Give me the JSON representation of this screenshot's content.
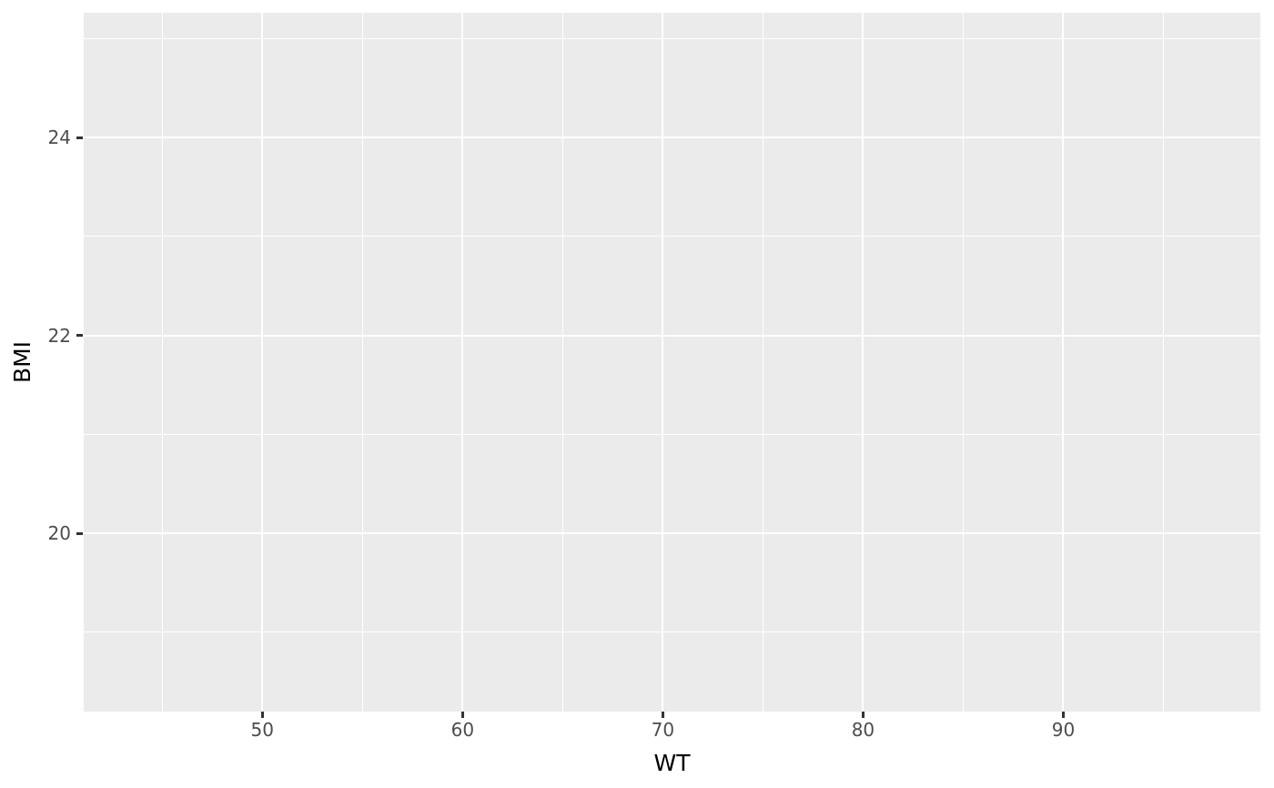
{
  "chart_data": {
    "type": "scatter",
    "title": "",
    "xlabel": "WT",
    "ylabel": "BMI",
    "x_major_ticks": [
      50,
      60,
      70,
      80,
      90
    ],
    "x_tick_labels": [
      "50",
      "60",
      "70",
      "80",
      "90"
    ],
    "x_minor_ticks": [
      45,
      55,
      65,
      75,
      85,
      95
    ],
    "y_major_ticks": [
      20,
      22,
      24
    ],
    "y_tick_labels": [
      "20",
      "22",
      "24"
    ],
    "y_minor_ticks": [
      19,
      21,
      23,
      25
    ],
    "xlim": [
      41.08,
      99.84
    ],
    "ylim": [
      18.2,
      25.26
    ],
    "points": [],
    "grid": true,
    "legend": "none",
    "colors": {
      "panel_background": "#EBEBEB",
      "grid_major": "#FFFFFF",
      "grid_minor": "#FFFFFF",
      "tick_mark": "#333333",
      "tick_label": "#4D4D4D",
      "axis_title": "#000000",
      "figure_background": "#FFFFFF"
    }
  }
}
